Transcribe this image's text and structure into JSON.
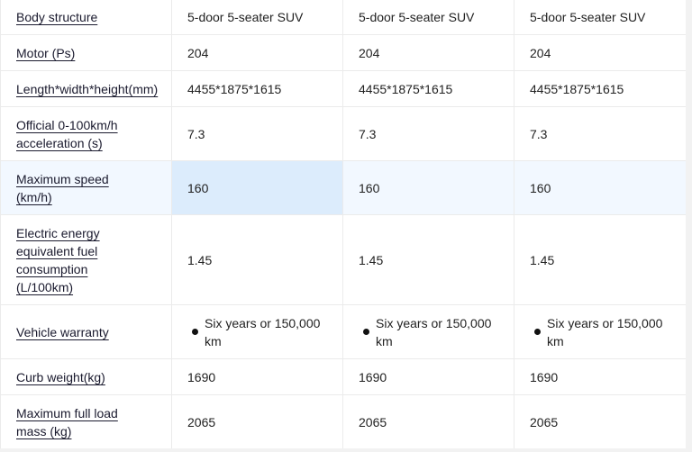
{
  "table": {
    "rows": [
      {
        "label": "Body structure",
        "values": [
          "5-door 5-seater SUV",
          "5-door 5-seater SUV",
          "5-door 5-seater SUV"
        ]
      },
      {
        "label": "Motor (Ps)",
        "values": [
          "204",
          "204",
          "204"
        ]
      },
      {
        "label": "Length*width*height(mm)",
        "values": [
          "4455*1875*1615",
          "4455*1875*1615",
          "4455*1875*1615"
        ]
      },
      {
        "label": "Official 0-100km/h acceleration (s)",
        "values": [
          "7.3",
          "7.3",
          "7.3"
        ]
      },
      {
        "label": "Maximum speed (km/h)",
        "values": [
          "160",
          "160",
          "160"
        ]
      },
      {
        "label": "Electric energy equivalent fuel consumption (L/100km)",
        "values": [
          "1.45",
          "1.45",
          "1.45"
        ]
      },
      {
        "label": "Vehicle warranty",
        "values": [
          "Six years or 150,000 km",
          "Six years or 150,000 km",
          "Six years or 150,000 km"
        ],
        "bullet": true
      },
      {
        "label": "Curb weight(kg)",
        "values": [
          "1690",
          "1690",
          "1690"
        ]
      },
      {
        "label": "Maximum full load mass (kg)",
        "values": [
          "2065",
          "2065",
          "2065"
        ]
      }
    ],
    "highlight_row": 4,
    "highlight_col": 0
  }
}
